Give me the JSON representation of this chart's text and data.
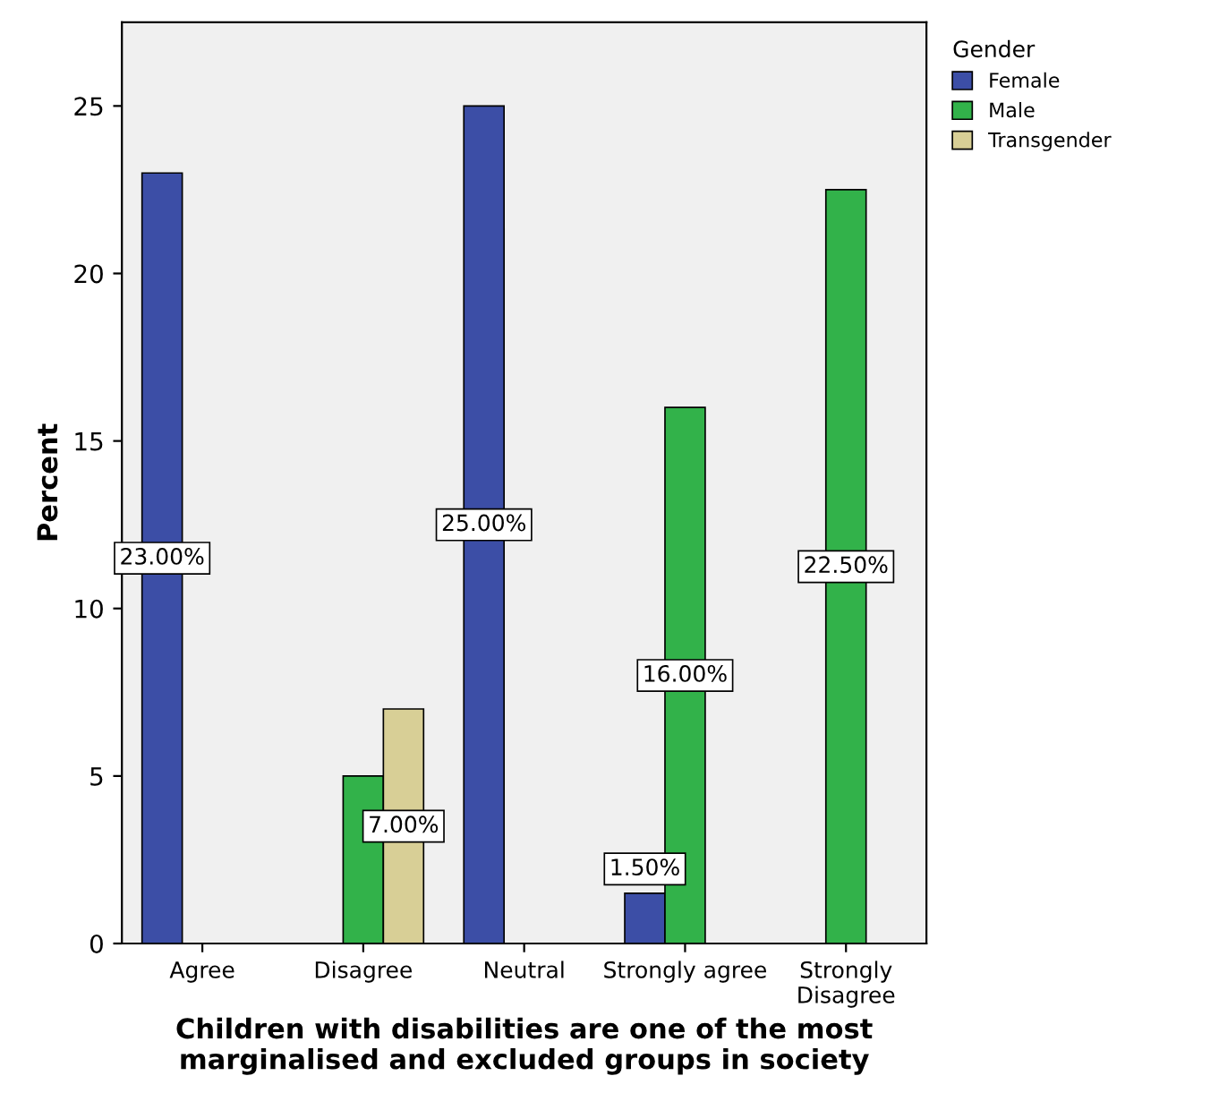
{
  "chart_data": {
    "type": "bar",
    "xlabel": "Children with disabilities are one of the most\nmarginalised and excluded groups in society",
    "ylabel": "Percent",
    "legend_title": "Gender",
    "categories": [
      "Agree",
      "Disagree",
      "Neutral",
      "Strongly agree",
      "Strongly\nDisagree"
    ],
    "series": [
      {
        "name": "Female",
        "color": "#3c4ea6",
        "values": [
          23,
          null,
          25,
          1.5,
          null
        ],
        "value_labels": [
          "23.00%",
          null,
          "25.00%",
          "1.50%",
          null
        ]
      },
      {
        "name": "Male",
        "color": "#32b24a",
        "values": [
          null,
          5,
          null,
          16,
          22.5
        ],
        "value_labels": [
          null,
          null,
          null,
          "16.00%",
          "22.50%"
        ]
      },
      {
        "name": "Transgender",
        "color": "#d8cf96",
        "values": [
          null,
          7,
          null,
          null,
          null
        ],
        "value_labels": [
          null,
          "7.00%",
          null,
          null,
          null
        ]
      }
    ],
    "ylim": [
      0,
      27.5
    ],
    "yticks": [
      0,
      5,
      10,
      15,
      20,
      25
    ],
    "grid": false,
    "legend": "top right"
  }
}
